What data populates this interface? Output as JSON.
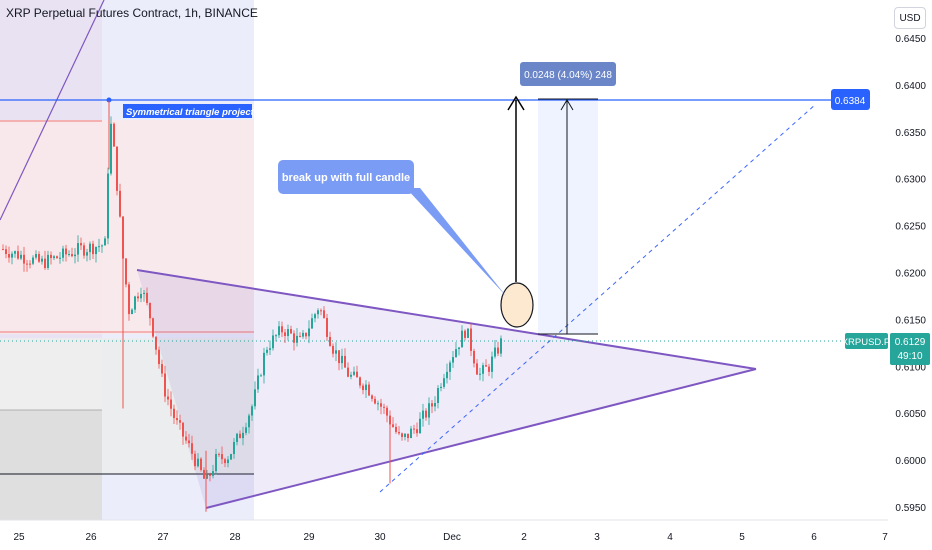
{
  "header": {
    "title": "XRP Perpetual Futures Contract, 1h, BINANCE"
  },
  "currency_button": {
    "label": "USD"
  },
  "annotations": {
    "pattern_label": "Symmetrical triangle projection",
    "callout": "break up with full candle",
    "measure_label": "0.0248 (4.04%) 248",
    "target_price": "0.6384",
    "symbol_tag": "XRPUSD.P",
    "last_price": "0.6129",
    "countdown": "49:10"
  },
  "colors": {
    "candle_up": "#26a69a",
    "candle_down": "#ef5350",
    "triangle": "#7e57c2",
    "target_line": "#2962ff",
    "symbol_tag": "#26a69a"
  },
  "chart_data": {
    "type": "candlestick",
    "title": "XRP Perpetual Futures Contract, 1h, BINANCE",
    "x_tick_labels": [
      "25",
      "26",
      "27",
      "28",
      "29",
      "30",
      "Dec",
      "2",
      "3",
      "4",
      "5",
      "6",
      "7"
    ],
    "y_tick_labels": [
      "0.6450",
      "0.6400",
      "0.6350",
      "0.6300",
      "0.6250",
      "0.6200",
      "0.6150",
      "0.6100",
      "0.6050",
      "0.6000",
      "0.5950"
    ],
    "ylim": [
      0.5945,
      0.6458
    ],
    "last_price": 0.6129,
    "target_price": 0.6384,
    "measured_move": {
      "change": 0.0248,
      "percent": 4.04,
      "bars": 248,
      "from": 0.6136,
      "to": 0.6384
    },
    "triangle": {
      "upper": [
        [
          "Nov 26",
          0.6208
        ],
        [
          "Dec 5",
          0.6101
        ]
      ],
      "lower": [
        [
          "Nov 27",
          0.5945
        ],
        [
          "Dec 5",
          0.6101
        ]
      ]
    },
    "grid": false
  }
}
